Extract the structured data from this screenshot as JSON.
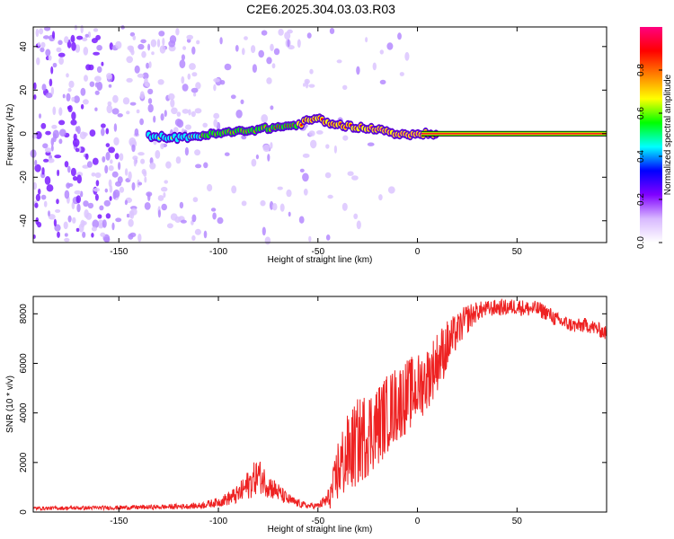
{
  "title": "C2E6.2025.304.03.03.R03",
  "chart_data": [
    {
      "type": "heatmap",
      "name": "spectrogram",
      "xlabel": "Height of straight line (km)",
      "ylabel": "Frequency (Hz)",
      "xlim": [
        -193,
        95
      ],
      "ylim": [
        -50,
        49
      ],
      "xticks": [
        -150,
        -100,
        -50,
        0,
        50
      ],
      "yticks": [
        -40,
        -20,
        0,
        20,
        40
      ],
      "ridge_x": [
        -135,
        -120,
        -110,
        -100,
        -90,
        -80,
        -70,
        -60,
        -55,
        -50,
        -45,
        -40,
        -30,
        -20,
        -10,
        -5,
        0,
        10,
        20,
        40,
        60,
        80,
        95
      ],
      "ridge_f": [
        -1,
        -2,
        -1,
        0,
        1,
        2,
        3,
        4,
        6,
        7,
        5,
        4,
        3,
        2,
        0,
        -1,
        0,
        0,
        0,
        0,
        0,
        0,
        0
      ],
      "colorbar": {
        "label": "Normalized spectral amplitude",
        "range": [
          0,
          1
        ],
        "ticks": [
          "0.0",
          "0.2",
          "0.4",
          "0.6",
          "0.8"
        ],
        "colors": [
          "#ffffff",
          "#d8b8ff",
          "#8000ff",
          "#0000ff",
          "#00ffff",
          "#00ff00",
          "#ffff00",
          "#ff8000",
          "#ff0000",
          "#ff0080"
        ]
      }
    },
    {
      "type": "line",
      "name": "snr",
      "xlabel": "Height of straight line (km)",
      "ylabel": "SNR (10 * v/v)",
      "xlim": [
        -193,
        95
      ],
      "ylim": [
        0,
        8700
      ],
      "xticks": [
        -150,
        -100,
        -50,
        0,
        50
      ],
      "yticks": [
        0,
        2000,
        4000,
        6000,
        8000
      ],
      "color": "#ee2222",
      "envelope_x": [
        -193,
        -160,
        -130,
        -110,
        -100,
        -90,
        -85,
        -80,
        -75,
        -70,
        -65,
        -60,
        -55,
        -50,
        -45,
        -42,
        -40,
        -35,
        -30,
        -25,
        -20,
        -15,
        -10,
        -5,
        0,
        5,
        10,
        15,
        20,
        25,
        30,
        35,
        40,
        45,
        50,
        55,
        60,
        65,
        70,
        75,
        80,
        85,
        90,
        95
      ],
      "envelope_y": [
        150,
        170,
        200,
        250,
        400,
        700,
        1100,
        1500,
        1100,
        800,
        500,
        350,
        250,
        250,
        500,
        1000,
        1700,
        2300,
        2800,
        3200,
        3500,
        4000,
        4400,
        4700,
        5000,
        5400,
        6100,
        6700,
        7300,
        7800,
        8100,
        8200,
        8250,
        8250,
        8300,
        8200,
        8200,
        8050,
        7750,
        7600,
        7500,
        7550,
        7400,
        7200
      ],
      "noise_frac": [
        0.6,
        0.6,
        0.6,
        0.6,
        0.6,
        0.7,
        0.7,
        0.6,
        0.6,
        0.6,
        0.6,
        0.6,
        0.6,
        0.6,
        1.0,
        1.1,
        1.0,
        0.9,
        0.8,
        0.7,
        0.6,
        0.5,
        0.45,
        0.4,
        0.35,
        0.3,
        0.25,
        0.2,
        0.12,
        0.1,
        0.06,
        0.05,
        0.05,
        0.05,
        0.05,
        0.05,
        0.05,
        0.05,
        0.05,
        0.05,
        0.05,
        0.05,
        0.05,
        0.05
      ]
    }
  ]
}
